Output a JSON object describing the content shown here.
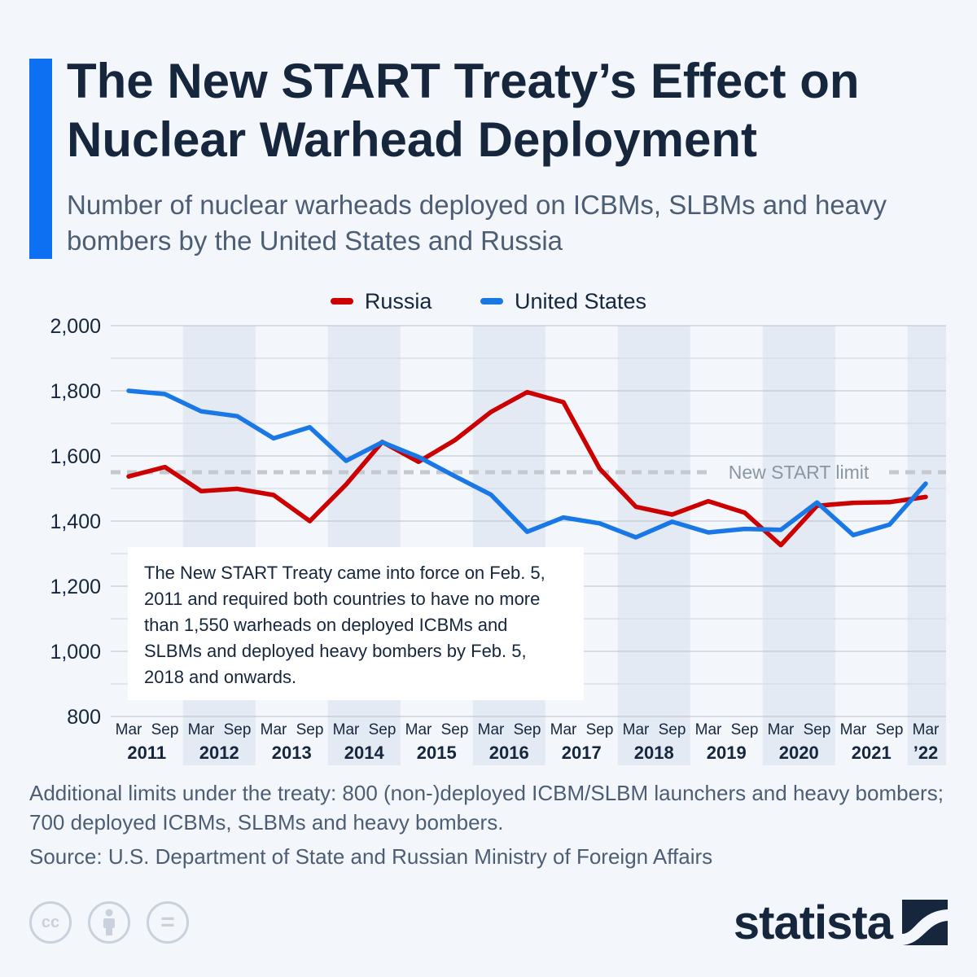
{
  "header": {
    "title": "The New START Treaty’s Effect on Nuclear Warhead Deployment",
    "subtitle": "Number of nuclear warheads deployed on ICBMs, SLBMs and heavy bombers by the United States and Russia"
  },
  "note": {
    "text": "The New START Treaty came into force on Feb. 5, 2011 and required both countries to have no more than 1,550 warheads on deployed ICBMs and SLBMs and deployed heavy bombers by Feb. 5, 2018 and onwards."
  },
  "footer": {
    "footnote": "Additional limits under the treaty: 800 (non-)deployed ICBM/SLBM launchers and heavy bombers; 700 deployed ICBMs, SLBMs and heavy bombers.",
    "source": "Source: U.S. Department of State and Russian Ministry of Foreign Affairs",
    "license_icons": [
      "cc-icon",
      "attribution-icon",
      "no-derivatives-icon"
    ],
    "cc_label": "cc",
    "nd_label": "=",
    "brand": "statista"
  },
  "colors": {
    "russia": "#cc0000",
    "united_states": "#1a78e6",
    "limit_line": "#c4c9d0",
    "accent": "#0d6ff2",
    "band": "#e4eaf3"
  },
  "chart_data": {
    "type": "line",
    "x": [
      "Mar",
      "Sep",
      "Mar",
      "Sep",
      "Mar",
      "Sep",
      "Mar",
      "Sep",
      "Mar",
      "Sep",
      "Mar",
      "Sep",
      "Mar",
      "Sep",
      "Mar",
      "Sep",
      "Mar",
      "Sep",
      "Mar",
      "Sep",
      "Mar",
      "Sep",
      "Mar"
    ],
    "year_labels": [
      "2011",
      "2012",
      "2013",
      "2014",
      "2015",
      "2016",
      "2017",
      "2018",
      "2019",
      "2020",
      "2021",
      "’22"
    ],
    "series": [
      {
        "name": "Russia",
        "values": [
          1537,
          1566,
          1492,
          1499,
          1480,
          1400,
          1512,
          1643,
          1582,
          1648,
          1735,
          1796,
          1765,
          1561,
          1444,
          1420,
          1461,
          1426,
          1326,
          1447,
          1456,
          1458,
          1474
        ]
      },
      {
        "name": "United States",
        "values": [
          1800,
          1790,
          1737,
          1722,
          1654,
          1688,
          1585,
          1642,
          1597,
          1538,
          1481,
          1367,
          1411,
          1393,
          1350,
          1398,
          1365,
          1376,
          1373,
          1457,
          1357,
          1389,
          1515
        ]
      }
    ],
    "reference_line": {
      "label": "New START limit",
      "value": 1550
    },
    "yticks": [
      "800",
      "1,000",
      "1,200",
      "1,400",
      "1,600",
      "1,800",
      "2,000"
    ],
    "ylim": [
      800,
      2000
    ],
    "grid": true,
    "legend_position": "top-center"
  }
}
